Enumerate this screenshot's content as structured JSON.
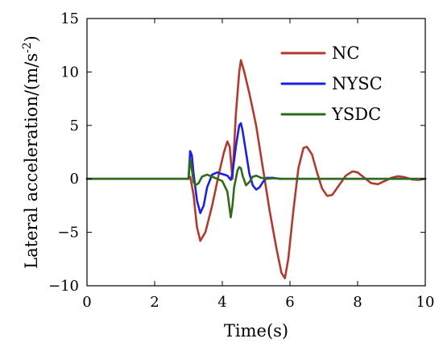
{
  "chart_data": {
    "type": "line",
    "xlabel": "Time(s)",
    "ylabel": "Lateral acceleration/(m/s",
    "ylabel_sup": "-2",
    "ylabel_close": ")",
    "xlim": [
      0,
      10
    ],
    "ylim": [
      -10,
      15
    ],
    "xticks": [
      0,
      2,
      4,
      6,
      8,
      10
    ],
    "yticks": [
      -10,
      -5,
      0,
      5,
      10,
      15
    ],
    "grid": false,
    "legend_position": "top-right",
    "series": [
      {
        "name": "NC",
        "color": "#b03a2e",
        "x": [
          0,
          3.0,
          3.05,
          3.15,
          3.25,
          3.35,
          3.5,
          3.7,
          3.9,
          4.05,
          4.15,
          4.22,
          4.3,
          4.4,
          4.5,
          4.55,
          4.65,
          4.8,
          5.0,
          5.2,
          5.4,
          5.6,
          5.75,
          5.85,
          5.95,
          6.1,
          6.25,
          6.4,
          6.5,
          6.65,
          6.8,
          6.95,
          7.1,
          7.25,
          7.45,
          7.65,
          7.85,
          8.0,
          8.2,
          8.4,
          8.6,
          8.8,
          9.0,
          9.2,
          9.4,
          9.6,
          9.8,
          10.0
        ],
        "y": [
          0,
          0,
          0.2,
          -1.5,
          -4.5,
          -5.8,
          -5.0,
          -2.5,
          0.5,
          2.5,
          3.5,
          3.0,
          0.0,
          6.0,
          10.0,
          11.1,
          10.0,
          8.0,
          5.0,
          1.0,
          -3.0,
          -6.5,
          -8.8,
          -9.3,
          -7.5,
          -3.0,
          1.0,
          2.9,
          3.0,
          2.3,
          0.6,
          -0.9,
          -1.6,
          -1.5,
          -0.6,
          0.3,
          0.7,
          0.6,
          0.1,
          -0.4,
          -0.5,
          -0.2,
          0.1,
          0.25,
          0.15,
          -0.05,
          -0.1,
          0.0
        ]
      },
      {
        "name": "NYSC",
        "color": "#1f1fe0",
        "x": [
          0,
          3.0,
          3.05,
          3.1,
          3.15,
          3.25,
          3.35,
          3.45,
          3.55,
          3.7,
          3.85,
          3.95,
          4.05,
          4.15,
          4.25,
          4.3,
          4.4,
          4.5,
          4.55,
          4.6,
          4.7,
          4.8,
          4.9,
          5.0,
          5.1,
          5.2,
          5.3,
          5.5,
          5.7,
          6.0,
          6.5,
          10.0
        ],
        "y": [
          0,
          0,
          2.6,
          2.2,
          0.5,
          -2.0,
          -3.2,
          -2.5,
          -0.8,
          0.4,
          0.6,
          0.5,
          0.4,
          0.3,
          -0.1,
          0.5,
          3.0,
          5.0,
          5.2,
          4.5,
          2.5,
          0.5,
          -0.6,
          -1.0,
          -0.8,
          -0.3,
          0.1,
          0.1,
          0.0,
          0.0,
          0.0,
          0.0
        ]
      },
      {
        "name": "YSDC",
        "color": "#2e6b1a",
        "x": [
          0,
          3.0,
          3.05,
          3.1,
          3.15,
          3.2,
          3.3,
          3.4,
          3.55,
          3.7,
          3.85,
          4.0,
          4.15,
          4.25,
          4.3,
          4.35,
          4.45,
          4.5,
          4.55,
          4.6,
          4.7,
          4.8,
          4.9,
          5.0,
          5.15,
          5.3,
          5.5,
          5.8,
          6.2,
          10.0
        ],
        "y": [
          0,
          0,
          1.8,
          0.9,
          -0.3,
          -0.6,
          -0.4,
          0.2,
          0.4,
          0.2,
          0.0,
          -0.2,
          -1.2,
          -3.6,
          -2.5,
          -0.8,
          0.8,
          1.1,
          1.0,
          0.3,
          -0.6,
          -0.3,
          0.2,
          0.3,
          0.1,
          0.0,
          0.05,
          0.0,
          0.0,
          0.0
        ]
      }
    ]
  }
}
